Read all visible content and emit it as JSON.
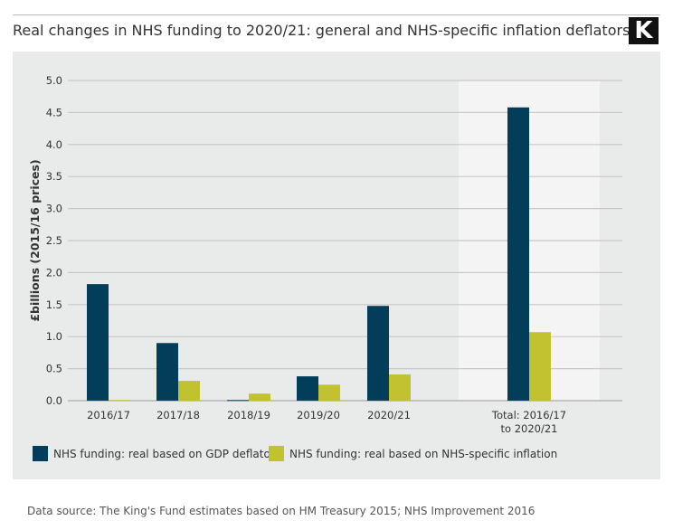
{
  "title": "Real changes in NHS funding to 2020/21: general and NHS-specific inflation deflators",
  "logo": "K",
  "source": "Data source: The King's Fund estimates based on HM Treasury 2015; NHS Improvement 2016",
  "chart_data": {
    "type": "bar",
    "title": "Real changes in NHS funding to 2020/21: general and NHS-specific inflation deflators",
    "categories": [
      "2016/17",
      "2017/18",
      "2018/19",
      "2019/20",
      "2020/21",
      "Total: 2016/17 to 2020/21"
    ],
    "category_lines": [
      [
        "2016/17"
      ],
      [
        "2017/18"
      ],
      [
        "2018/19"
      ],
      [
        "2019/20"
      ],
      [
        "2020/21"
      ],
      [
        "Total: 2016/17",
        "to 2020/21"
      ]
    ],
    "series": [
      {
        "name": "NHS funding: real based on GDP deflator",
        "color": "#023d5a",
        "values": [
          1.82,
          0.9,
          0.01,
          0.38,
          1.48,
          4.58
        ]
      },
      {
        "name": "NHS funding: real based on NHS-specific inflation",
        "color": "#c2c130",
        "values": [
          0.01,
          0.31,
          0.11,
          0.25,
          0.41,
          1.07
        ]
      }
    ],
    "xlabel": "",
    "ylabel": "£billions (2015/16 prices)",
    "ylim": [
      0,
      5.0
    ],
    "yticks": [
      "0.0",
      "0.5",
      "1.0",
      "1.5",
      "2.0",
      "2.5",
      "3.0",
      "3.5",
      "4.0",
      "4.5",
      "5.0"
    ],
    "grid": true,
    "highlighted_category": "Total: 2016/17 to 2020/21",
    "legend_position": "bottom"
  }
}
